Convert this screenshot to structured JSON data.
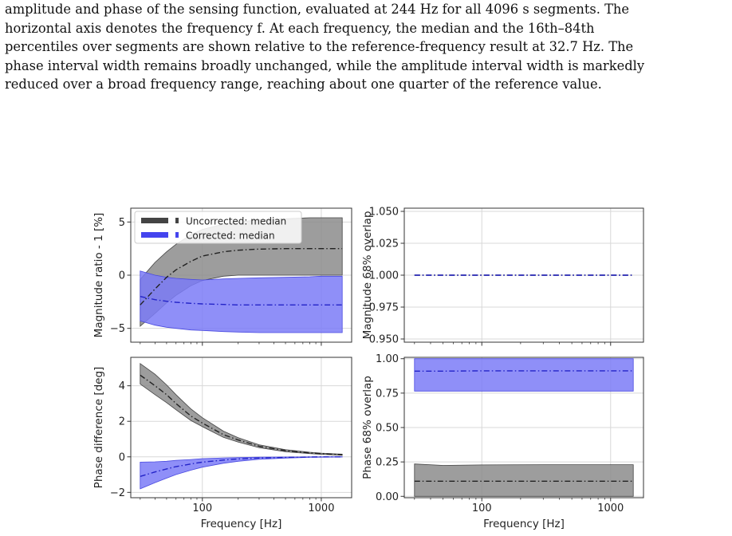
{
  "caption": {
    "lines": [
      "amplitude and phase of the sensing function, evaluated at 244 Hz for all 4096 s segments. The",
      "horizontal axis denotes the frequency f.  At each frequency, the median and the 16th–84th",
      "percentiles over segments are shown relative to the reference-frequency result at 32.7 Hz. The",
      "phase interval width remains broadly unchanged, while the amplitude interval width is markedly",
      "reduced over a broad frequency range, reaching about one quarter of the reference value."
    ]
  },
  "colors": {
    "uncorrected_fill": "#8c8c8c",
    "uncorrected_line": "#222222",
    "corrected_fill": "#7b7bf7",
    "corrected_line": "#2323c8",
    "grid": "#d8d8d8",
    "axis": "#333333"
  },
  "chart_data": [
    {
      "id": "magnitude",
      "type": "area",
      "xlabel": "",
      "ylabel": "Magnitude ratio - 1 [%]",
      "xscale": "log",
      "xlim": [
        25,
        1800
      ],
      "ylim": [
        -6.3,
        6.3
      ],
      "yticks": [
        -5,
        0,
        5
      ],
      "yticklabels": [
        "−5",
        "0",
        "5"
      ],
      "grid": true,
      "legend": {
        "placement": "top-left",
        "entries": [
          "Uncorrected: median",
          "Corrected: median"
        ]
      },
      "x": [
        30,
        40,
        50,
        60,
        80,
        100,
        150,
        200,
        300,
        500,
        800,
        1000,
        1500
      ],
      "series": [
        {
          "name": "Uncorrected: median",
          "role": "uncorrected",
          "median": [
            -2.8,
            -1.3,
            -0.2,
            0.5,
            1.3,
            1.8,
            2.2,
            2.35,
            2.45,
            2.5,
            2.5,
            2.5,
            2.5
          ],
          "lower": [
            -4.8,
            -3.6,
            -2.6,
            -1.9,
            -1.0,
            -0.5,
            -0.1,
            0.0,
            0.0,
            0.0,
            0.0,
            0.0,
            0.0
          ],
          "upper": [
            -0.4,
            1.2,
            2.2,
            2.9,
            3.8,
            4.3,
            4.8,
            5.0,
            5.2,
            5.3,
            5.4,
            5.4,
            5.4
          ]
        },
        {
          "name": "Corrected: median",
          "role": "corrected",
          "median": [
            -2.0,
            -2.3,
            -2.45,
            -2.55,
            -2.65,
            -2.7,
            -2.75,
            -2.8,
            -2.8,
            -2.8,
            -2.8,
            -2.8,
            -2.8
          ],
          "lower": [
            -4.3,
            -4.7,
            -4.9,
            -5.0,
            -5.15,
            -5.2,
            -5.3,
            -5.35,
            -5.4,
            -5.4,
            -5.4,
            -5.4,
            -5.4
          ],
          "upper": [
            0.4,
            0.0,
            -0.2,
            -0.3,
            -0.4,
            -0.45,
            -0.35,
            -0.3,
            -0.25,
            -0.2,
            -0.15,
            -0.1,
            -0.1
          ]
        }
      ]
    },
    {
      "id": "magnitude_overlap",
      "type": "line",
      "xlabel": "",
      "ylabel": "Magnitude 68% overlap",
      "xscale": "log",
      "xlim": [
        25,
        1800
      ],
      "ylim": [
        0.9475,
        1.0525
      ],
      "yticks": [
        0.95,
        0.975,
        1.0,
        1.025,
        1.05
      ],
      "yticklabels": [
        "0.950",
        "0.975",
        "1.000",
        "1.025",
        "1.050"
      ],
      "grid": true,
      "x": [
        30,
        1500
      ],
      "series": [
        {
          "name": "",
          "role": "uncorrected",
          "median": [
            1.0,
            1.0
          ]
        },
        {
          "name": "",
          "role": "corrected",
          "median": [
            1.0,
            1.0
          ]
        }
      ]
    },
    {
      "id": "phase",
      "type": "area",
      "xlabel": "Frequency [Hz]",
      "ylabel": "Phase difference [deg]",
      "xscale": "log",
      "xlim": [
        25,
        1800
      ],
      "ylim": [
        -2.3,
        5.6
      ],
      "yticks": [
        -2,
        0,
        2,
        4
      ],
      "yticklabels": [
        "−2",
        "0",
        "2",
        "4"
      ],
      "xticks": [
        100,
        1000
      ],
      "xticklabels": [
        "100",
        "1000"
      ],
      "grid": true,
      "x": [
        30,
        40,
        50,
        60,
        80,
        100,
        150,
        200,
        300,
        500,
        800,
        1000,
        1500
      ],
      "series": [
        {
          "name": "",
          "role": "uncorrected",
          "median": [
            4.6,
            4.0,
            3.5,
            3.0,
            2.3,
            1.9,
            1.25,
            0.95,
            0.6,
            0.35,
            0.22,
            0.18,
            0.12
          ],
          "lower": [
            4.1,
            3.5,
            3.05,
            2.65,
            2.05,
            1.7,
            1.1,
            0.83,
            0.52,
            0.29,
            0.18,
            0.14,
            0.09
          ],
          "upper": [
            5.25,
            4.65,
            4.05,
            3.5,
            2.7,
            2.2,
            1.45,
            1.08,
            0.68,
            0.4,
            0.26,
            0.21,
            0.15
          ]
        },
        {
          "name": "",
          "role": "corrected",
          "median": [
            -1.1,
            -0.85,
            -0.68,
            -0.55,
            -0.4,
            -0.3,
            -0.18,
            -0.12,
            -0.07,
            -0.03,
            -0.01,
            0.0,
            0.0
          ],
          "lower": [
            -1.8,
            -1.45,
            -1.2,
            -1.0,
            -0.75,
            -0.58,
            -0.36,
            -0.25,
            -0.14,
            -0.07,
            -0.03,
            -0.02,
            -0.01
          ],
          "upper": [
            -0.3,
            -0.28,
            -0.25,
            -0.2,
            -0.15,
            -0.1,
            -0.06,
            -0.04,
            -0.02,
            -0.01,
            0.0,
            0.0,
            0.01
          ]
        }
      ]
    },
    {
      "id": "phase_overlap",
      "type": "area",
      "xlabel": "Frequency [Hz]",
      "ylabel": "Phase 68% overlap",
      "xscale": "log",
      "xlim": [
        25,
        1800
      ],
      "ylim": [
        -0.01,
        1.01
      ],
      "yticks": [
        0.0,
        0.25,
        0.5,
        0.75,
        1.0
      ],
      "yticklabels": [
        "0.00",
        "0.25",
        "0.50",
        "0.75",
        "1.00"
      ],
      "xticks": [
        100,
        1000
      ],
      "xticklabels": [
        "100",
        "1000"
      ],
      "grid": true,
      "x": [
        30,
        50,
        100,
        300,
        1000,
        1500
      ],
      "series": [
        {
          "name": "",
          "role": "uncorrected",
          "median": [
            0.11,
            0.11,
            0.11,
            0.11,
            0.11,
            0.11
          ],
          "lower": [
            0.0,
            0.0,
            0.0,
            0.0,
            0.0,
            0.0
          ],
          "upper": [
            0.235,
            0.225,
            0.228,
            0.23,
            0.23,
            0.23
          ]
        },
        {
          "name": "",
          "role": "corrected",
          "median": [
            0.91,
            0.91,
            0.912,
            0.912,
            0.912,
            0.912
          ],
          "lower": [
            0.765,
            0.765,
            0.765,
            0.765,
            0.765,
            0.765
          ],
          "upper": [
            1.0,
            1.0,
            1.0,
            1.0,
            1.0,
            1.0
          ]
        }
      ]
    }
  ]
}
